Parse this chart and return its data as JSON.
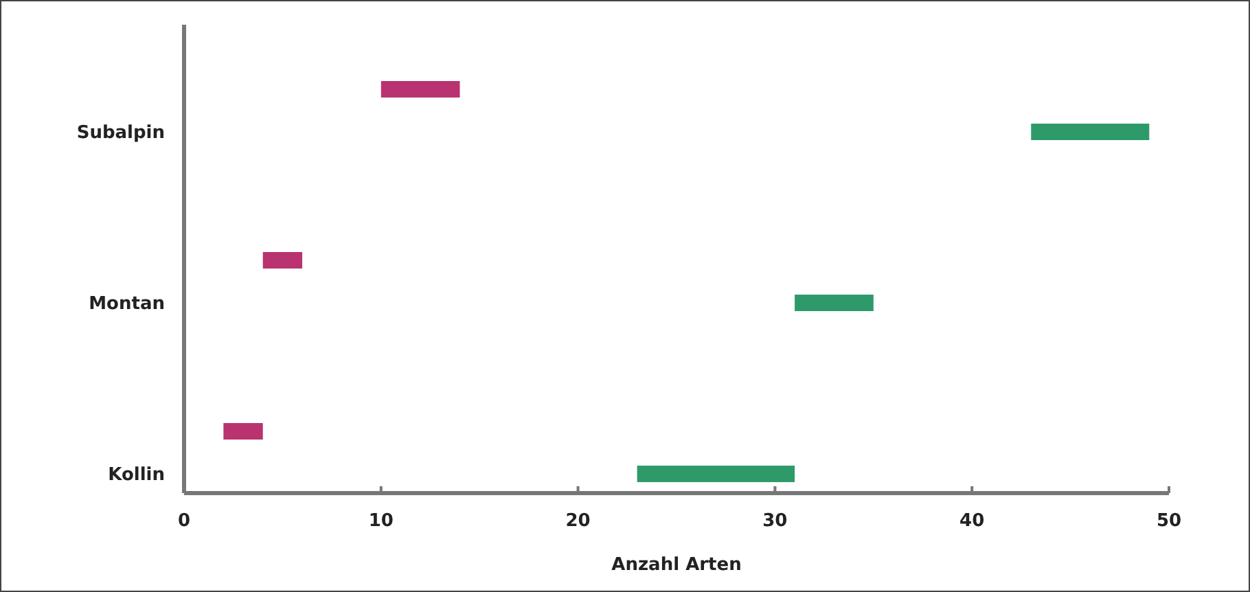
{
  "chart_data": {
    "type": "bar",
    "orientation": "horizontal",
    "xlabel": "Anzahl Arten",
    "categories": [
      "Subalpin",
      "Montan",
      "Kollin"
    ],
    "series": [
      {
        "color": "#b8336f",
        "base": [
          10,
          4,
          2
        ],
        "values": [
          4,
          2,
          2
        ]
      },
      {
        "color": "#2e9a6a",
        "base": [
          43,
          31,
          23
        ],
        "values": [
          6,
          4,
          8
        ]
      }
    ],
    "xlim": [
      0,
      50
    ],
    "xticks": [
      0,
      10,
      20,
      30,
      40,
      50
    ],
    "grid": false
  }
}
